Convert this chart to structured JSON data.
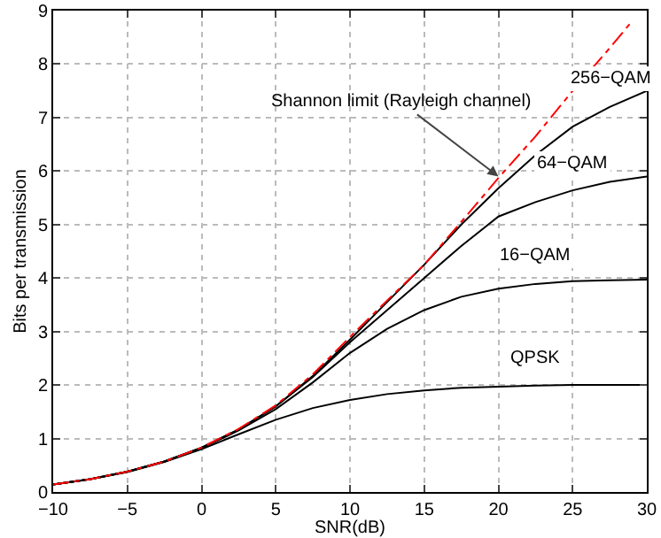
{
  "chart_data": {
    "type": "line",
    "xlabel": "SNR(dB)",
    "ylabel": "Bits per transmission",
    "x": [
      -10,
      -7.5,
      -5,
      -2.5,
      0,
      2.5,
      5,
      7.5,
      10,
      12.5,
      15,
      17.5,
      20,
      22.5,
      25,
      27.5,
      30
    ],
    "series": [
      {
        "color": "#000000",
        "line_style": "solid",
        "values": [
          0.14,
          0.24,
          0.37,
          0.56,
          0.8,
          1.08,
          1.35,
          1.57,
          1.72,
          1.83,
          1.9,
          1.95,
          1.97,
          1.99,
          2.0,
          2.0,
          2.0
        ]
      },
      {
        "color": "#000000",
        "line_style": "solid",
        "values": [
          0.14,
          0.24,
          0.38,
          0.57,
          0.82,
          1.15,
          1.55,
          2.05,
          2.6,
          3.05,
          3.4,
          3.65,
          3.8,
          3.89,
          3.94,
          3.96,
          3.97
        ]
      },
      {
        "color": "#000000",
        "line_style": "solid",
        "values": [
          0.14,
          0.24,
          0.38,
          0.57,
          0.83,
          1.17,
          1.6,
          2.15,
          2.8,
          3.4,
          4.0,
          4.6,
          5.15,
          5.42,
          5.64,
          5.8,
          5.9
        ]
      },
      {
        "color": "#000000",
        "line_style": "solid",
        "values": [
          0.14,
          0.24,
          0.38,
          0.57,
          0.83,
          1.17,
          1.6,
          2.17,
          2.85,
          3.55,
          4.25,
          5.0,
          5.68,
          6.3,
          6.83,
          7.2,
          7.5
        ]
      },
      {
        "color": "#ff0000",
        "line_style": "dashed",
        "x": [
          -10,
          -7.5,
          -5,
          -2.5,
          0,
          2.5,
          5,
          7.5,
          10,
          12.5,
          15,
          17.5,
          20,
          22.5,
          25,
          27.5,
          29
        ],
        "values": [
          0.14,
          0.24,
          0.38,
          0.57,
          0.83,
          1.18,
          1.62,
          2.2,
          2.9,
          3.58,
          4.25,
          5.05,
          5.87,
          6.65,
          7.5,
          8.3,
          8.8
        ]
      }
    ],
    "xlim": [
      -10,
      30
    ],
    "xticks": [
      {
        "value": -10,
        "label": "−10"
      },
      {
        "value": -5,
        "label": "−5"
      },
      0,
      5,
      10,
      15,
      20,
      25,
      30
    ],
    "ylim": [
      0,
      9
    ],
    "yticks": [
      0,
      1,
      2,
      3,
      4,
      5,
      6,
      7,
      8,
      9
    ],
    "grid": true,
    "marker": "none",
    "annotations": [
      {
        "text": "Shannon limit (Rayleigh channel)",
        "x": 20,
        "y": 5.9
      },
      {
        "text": "256−QAM",
        "x": 27.5,
        "y": 7.2
      },
      {
        "text": "64−QAM",
        "x": 25,
        "y": 5.64
      },
      {
        "text": "16−QAM",
        "x": 22.5,
        "y": 3.89
      },
      {
        "text": "QPSK",
        "x": 22.5,
        "y": 1.99
      }
    ]
  }
}
